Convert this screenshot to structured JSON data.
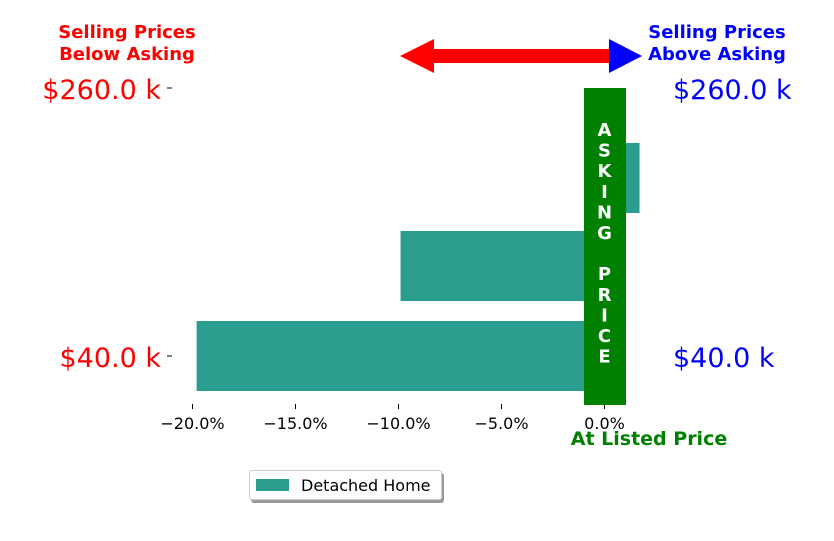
{
  "chart_data": {
    "type": "bar",
    "orientation": "horizontal",
    "categories": [
      "$40.0 k",
      "",
      "$260.0 k"
    ],
    "series": [
      {
        "name": "Detached Home",
        "values": [
          -19.8,
          -9.9,
          1.7
        ]
      }
    ],
    "xlim": [
      -21.5,
      4.5
    ],
    "xticks": [
      -20,
      -15,
      -10,
      -5,
      0
    ],
    "xtick_labels": [
      "−20.0%",
      "−15.0%",
      "−10.0%",
      "−5.0%",
      "0.0%"
    ],
    "left_labels": {
      "top": "$260.0 k",
      "bottom": "$40.0 k",
      "color": "#ff0000"
    },
    "right_labels": {
      "top": "$260.0 k",
      "bottom": "$40.0 k",
      "color": "#0000ff"
    },
    "heading_left": "Selling Prices\nBelow Asking",
    "heading_right": "Selling Prices\nAbove Asking",
    "asking_price_label": "ASKING PRICE",
    "at_listed_label": "At Listed Price",
    "grid": false,
    "legend_position": "bottom-center",
    "colors": {
      "bar": "#2a9d8f",
      "asking": "#008000",
      "arrow_left": "#ff0000",
      "arrow_right": "#0000ff",
      "left_text": "#ff0000",
      "right_text": "#0000ff",
      "listed": "#008000"
    }
  }
}
